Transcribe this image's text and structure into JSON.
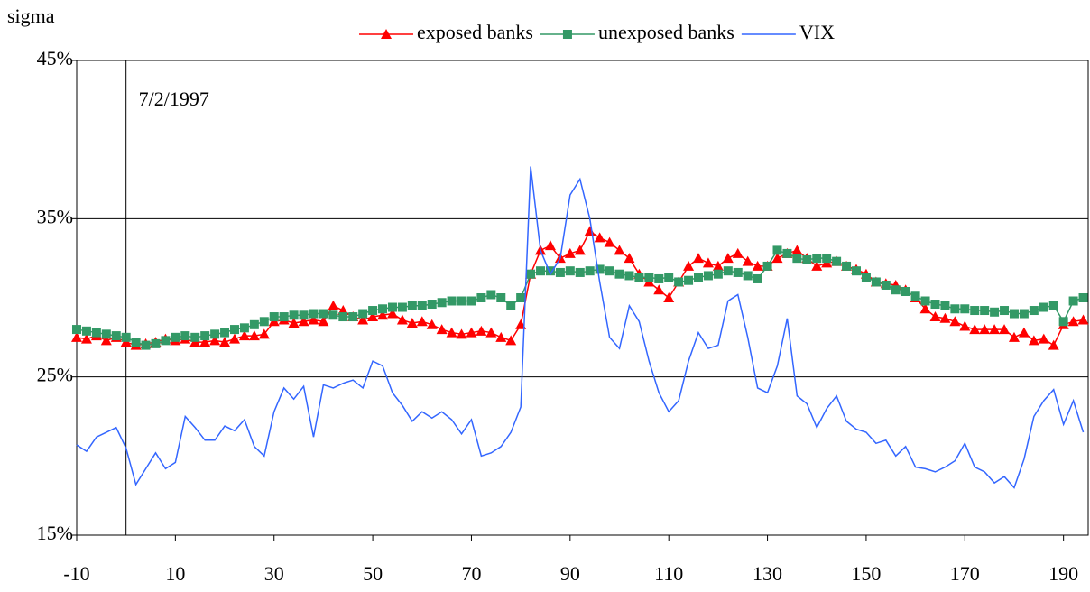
{
  "chart_data": {
    "type": "line",
    "y_label": "sigma",
    "annotation": {
      "text": "7/2/1997",
      "x": 0
    },
    "x": [
      -10,
      -8,
      -6,
      -4,
      -2,
      0,
      2,
      4,
      6,
      8,
      10,
      12,
      14,
      16,
      18,
      20,
      22,
      24,
      26,
      28,
      30,
      32,
      34,
      36,
      38,
      40,
      42,
      44,
      46,
      48,
      50,
      52,
      54,
      56,
      58,
      60,
      62,
      64,
      66,
      68,
      70,
      72,
      74,
      76,
      78,
      80,
      82,
      84,
      86,
      88,
      90,
      92,
      94,
      96,
      98,
      100,
      102,
      104,
      106,
      108,
      110,
      112,
      114,
      116,
      118,
      120,
      122,
      124,
      126,
      128,
      130,
      132,
      134,
      136,
      138,
      140,
      142,
      144,
      146,
      148,
      150,
      152,
      154,
      156,
      158,
      160,
      162,
      164,
      166,
      168,
      170,
      172,
      174,
      176,
      178,
      180,
      182,
      184,
      186,
      188,
      190,
      192,
      194
    ],
    "series": [
      {
        "name": "exposed banks",
        "color": "#ff0000",
        "marker": "triangle",
        "values": [
          27.5,
          27.4,
          27.6,
          27.3,
          27.5,
          27.2,
          27.0,
          27.1,
          27.2,
          27.4,
          27.3,
          27.4,
          27.2,
          27.2,
          27.3,
          27.2,
          27.4,
          27.6,
          27.6,
          27.7,
          28.5,
          28.6,
          28.4,
          28.5,
          28.6,
          28.5,
          29.5,
          29.2,
          28.8,
          28.6,
          28.8,
          28.9,
          29.0,
          28.6,
          28.4,
          28.5,
          28.3,
          28.0,
          27.8,
          27.7,
          27.8,
          27.9,
          27.8,
          27.5,
          27.3,
          28.3,
          31.5,
          33.0,
          33.3,
          32.5,
          32.8,
          33.0,
          34.2,
          33.8,
          33.5,
          33.0,
          32.5,
          31.5,
          31.0,
          30.5,
          30.0,
          31.0,
          32.0,
          32.5,
          32.2,
          32.0,
          32.5,
          32.8,
          32.3,
          32.0,
          32.0,
          32.5,
          32.8,
          33.0,
          32.5,
          32.0,
          32.2,
          32.3,
          32.0,
          31.8,
          31.5,
          31.0,
          30.9,
          30.8,
          30.5,
          30.0,
          29.3,
          28.8,
          28.7,
          28.5,
          28.2,
          28.0,
          28.0,
          28.0,
          28.0,
          27.5,
          27.8,
          27.3,
          27.4,
          27.0,
          28.3,
          28.5,
          28.6
        ]
      },
      {
        "name": "unexposed banks",
        "color": "#339966",
        "marker": "square",
        "values": [
          28.0,
          27.9,
          27.8,
          27.7,
          27.6,
          27.5,
          27.2,
          27.0,
          27.1,
          27.3,
          27.5,
          27.6,
          27.5,
          27.6,
          27.7,
          27.8,
          28.0,
          28.1,
          28.3,
          28.5,
          28.8,
          28.8,
          28.9,
          28.9,
          29.0,
          29.0,
          28.9,
          28.8,
          28.8,
          29.0,
          29.2,
          29.3,
          29.4,
          29.4,
          29.5,
          29.5,
          29.6,
          29.7,
          29.8,
          29.8,
          29.8,
          30.0,
          30.2,
          30.0,
          29.5,
          30.0,
          31.5,
          31.7,
          31.7,
          31.6,
          31.7,
          31.6,
          31.7,
          31.8,
          31.7,
          31.5,
          31.4,
          31.3,
          31.3,
          31.2,
          31.3,
          31.0,
          31.1,
          31.3,
          31.4,
          31.5,
          31.7,
          31.6,
          31.4,
          31.2,
          32.0,
          33.0,
          32.8,
          32.5,
          32.4,
          32.5,
          32.5,
          32.3,
          32.0,
          31.7,
          31.3,
          31.0,
          30.8,
          30.5,
          30.4,
          30.1,
          29.8,
          29.6,
          29.5,
          29.3,
          29.3,
          29.2,
          29.2,
          29.1,
          29.2,
          29.0,
          29.0,
          29.2,
          29.4,
          29.5,
          28.5,
          29.8,
          30.0
        ]
      },
      {
        "name": "VIX",
        "color": "#3366ff",
        "marker": "none",
        "values": [
          20.7,
          20.3,
          21.2,
          21.5,
          21.8,
          20.5,
          18.2,
          19.2,
          20.2,
          19.2,
          19.6,
          22.5,
          21.8,
          21.0,
          21.0,
          21.9,
          21.6,
          22.3,
          20.6,
          20.0,
          22.8,
          24.3,
          23.6,
          24.4,
          21.2,
          24.5,
          24.3,
          24.6,
          24.8,
          24.3,
          26.0,
          25.7,
          24.0,
          23.2,
          22.2,
          22.8,
          22.4,
          22.8,
          22.3,
          21.4,
          22.3,
          20.0,
          20.2,
          20.6,
          21.5,
          23.1,
          38.3,
          33.0,
          31.5,
          32.5,
          36.5,
          37.5,
          35.0,
          31.0,
          27.5,
          26.8,
          29.5,
          28.5,
          26.0,
          24.0,
          22.8,
          23.5,
          26.0,
          27.8,
          26.8,
          27.0,
          29.8,
          30.2,
          27.5,
          24.3,
          24.0,
          25.7,
          28.7,
          23.8,
          23.3,
          21.8,
          23.0,
          23.8,
          22.2,
          21.7,
          21.5,
          20.8,
          21.0,
          20.0,
          20.6,
          19.3,
          19.2,
          19.0,
          19.3,
          19.7,
          20.8,
          19.3,
          19.0,
          18.3,
          18.7,
          18.0,
          19.8,
          22.5,
          23.5,
          24.2,
          22.0,
          23.5,
          21.5
        ]
      }
    ],
    "xlim": [
      -10,
      195
    ],
    "xticks": [
      -10,
      10,
      30,
      50,
      70,
      90,
      110,
      130,
      150,
      170,
      190
    ],
    "ylim": [
      15,
      45
    ],
    "yticks": [
      {
        "value": 15,
        "label": "15%"
      },
      {
        "value": 25,
        "label": "25%"
      },
      {
        "value": 35,
        "label": "35%"
      },
      {
        "value": 45,
        "label": "45%"
      }
    ],
    "grid": true,
    "legend": "top"
  }
}
